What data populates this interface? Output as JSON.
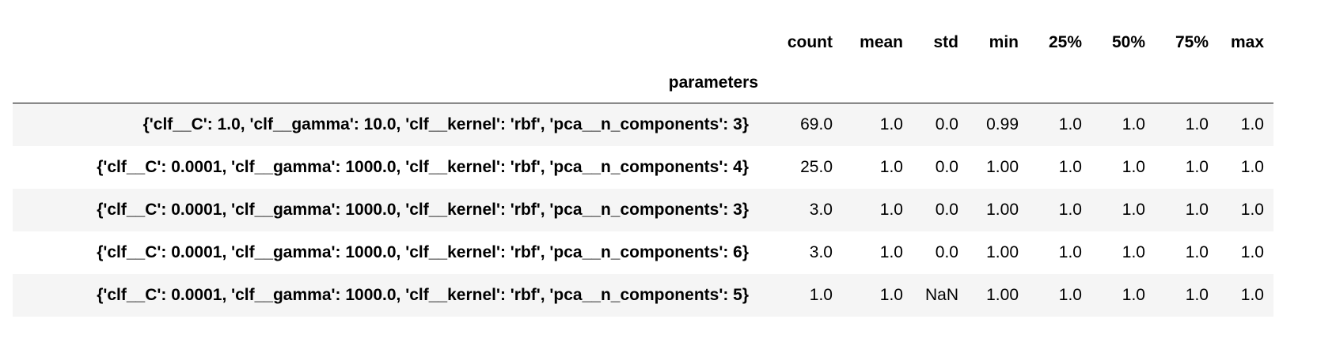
{
  "table": {
    "columns": {
      "count": "count",
      "mean": "mean",
      "std": "std",
      "min": "min",
      "p25": "25%",
      "p50": "50%",
      "p75": "75%",
      "max": "max"
    },
    "index_name": "parameters",
    "rows": [
      {
        "index": "{'clf__C': 1.0, 'clf__gamma': 10.0, 'clf__kernel': 'rbf', 'pca__n_components': 3}",
        "count": "69.0",
        "mean": "1.0",
        "std": "0.0",
        "min": "0.99",
        "p25": "1.0",
        "p50": "1.0",
        "p75": "1.0",
        "max": "1.0"
      },
      {
        "index": "{'clf__C': 0.0001, 'clf__gamma': 1000.0, 'clf__kernel': 'rbf', 'pca__n_components': 4}",
        "count": "25.0",
        "mean": "1.0",
        "std": "0.0",
        "min": "1.00",
        "p25": "1.0",
        "p50": "1.0",
        "p75": "1.0",
        "max": "1.0"
      },
      {
        "index": "{'clf__C': 0.0001, 'clf__gamma': 1000.0, 'clf__kernel': 'rbf', 'pca__n_components': 3}",
        "count": "3.0",
        "mean": "1.0",
        "std": "0.0",
        "min": "1.00",
        "p25": "1.0",
        "p50": "1.0",
        "p75": "1.0",
        "max": "1.0"
      },
      {
        "index": "{'clf__C': 0.0001, 'clf__gamma': 1000.0, 'clf__kernel': 'rbf', 'pca__n_components': 6}",
        "count": "3.0",
        "mean": "1.0",
        "std": "0.0",
        "min": "1.00",
        "p25": "1.0",
        "p50": "1.0",
        "p75": "1.0",
        "max": "1.0"
      },
      {
        "index": "{'clf__C': 0.0001, 'clf__gamma': 1000.0, 'clf__kernel': 'rbf', 'pca__n_components': 5}",
        "count": "1.0",
        "mean": "1.0",
        "std": "NaN",
        "min": "1.00",
        "p25": "1.0",
        "p50": "1.0",
        "p75": "1.0",
        "max": "1.0"
      }
    ]
  },
  "colors": {
    "stripe": "#f5f5f5",
    "background": "#ffffff",
    "text": "#000000",
    "rule": "#000000"
  }
}
